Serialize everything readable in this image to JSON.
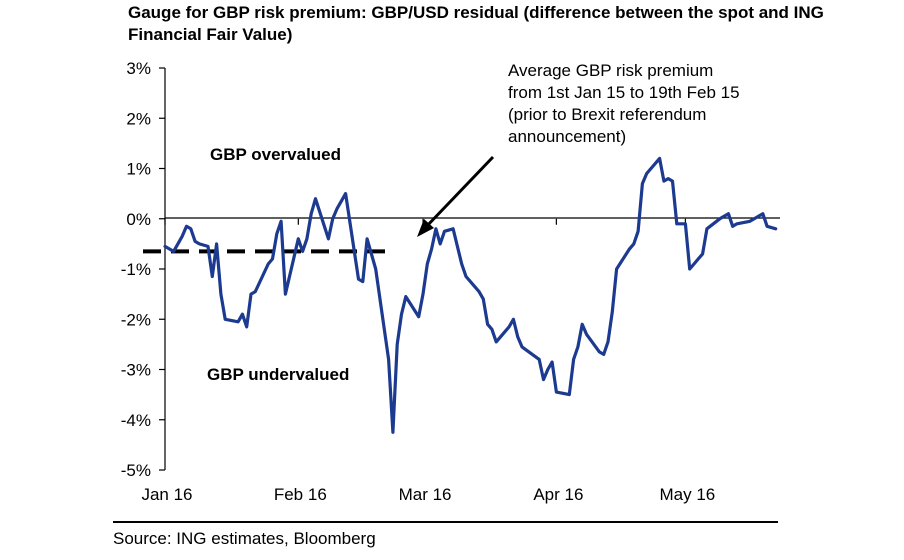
{
  "chart_data": {
    "type": "line",
    "title": "Gauge for GBP risk premium: GBP/USD residual (difference between the spot and ING Financial Fair Value)",
    "xlabel": "",
    "ylabel": "",
    "ylim": [
      -5,
      3
    ],
    "yticks": [
      3,
      2,
      1,
      0,
      -1,
      -2,
      -3,
      -4,
      -5
    ],
    "ytick_labels": [
      "3%",
      "2%",
      "1%",
      "0%",
      "-1%",
      "-2%",
      "-3%",
      "-4%",
      "-5%"
    ],
    "x_range": [
      "2016-01-01",
      "2016-05-23"
    ],
    "xticks": [
      {
        "date": "2016-01-01",
        "label": "Jan 16"
      },
      {
        "date": "2016-02-01",
        "label": "Feb 16"
      },
      {
        "date": "2016-03-01",
        "label": "Mar 16"
      },
      {
        "date": "2016-04-01",
        "label": "Apr 16"
      },
      {
        "date": "2016-05-01",
        "label": "May 16"
      }
    ],
    "grid": false,
    "zero_line": true,
    "line_color": "#1c3a8f",
    "series": [
      {
        "dates": [
          "2016-01-01",
          "2016-01-03",
          "2016-01-05",
          "2016-01-06",
          "2016-01-07",
          "2016-01-08",
          "2016-01-09",
          "2016-01-11",
          "2016-01-12",
          "2016-01-13",
          "2016-01-14",
          "2016-01-15",
          "2016-01-18",
          "2016-01-19",
          "2016-01-20",
          "2016-01-21",
          "2016-01-22",
          "2016-01-25",
          "2016-01-26",
          "2016-01-27",
          "2016-01-28",
          "2016-01-29",
          "2016-02-01",
          "2016-02-02",
          "2016-02-03",
          "2016-02-04",
          "2016-02-05",
          "2016-02-08",
          "2016-02-09",
          "2016-02-10",
          "2016-02-11",
          "2016-02-12",
          "2016-02-15",
          "2016-02-16",
          "2016-02-17",
          "2016-02-18",
          "2016-02-19",
          "2016-02-22",
          "2016-02-23",
          "2016-02-24",
          "2016-02-25",
          "2016-02-26",
          "2016-02-29",
          "2016-03-01",
          "2016-03-02",
          "2016-03-03",
          "2016-03-04",
          "2016-03-05",
          "2016-03-06",
          "2016-03-08",
          "2016-03-09",
          "2016-03-10",
          "2016-03-11",
          "2016-03-14",
          "2016-03-15",
          "2016-03-16",
          "2016-03-17",
          "2016-03-18",
          "2016-03-21",
          "2016-03-22",
          "2016-03-23",
          "2016-03-24",
          "2016-03-28",
          "2016-03-29",
          "2016-03-30",
          "2016-03-31",
          "2016-04-01",
          "2016-04-04",
          "2016-04-05",
          "2016-04-06",
          "2016-04-07",
          "2016-04-08",
          "2016-04-11",
          "2016-04-12",
          "2016-04-13",
          "2016-04-14",
          "2016-04-15",
          "2016-04-18",
          "2016-04-19",
          "2016-04-20",
          "2016-04-21",
          "2016-04-22",
          "2016-04-25",
          "2016-04-26",
          "2016-04-27",
          "2016-04-28",
          "2016-04-29",
          "2016-05-01",
          "2016-05-02",
          "2016-05-03",
          "2016-05-04",
          "2016-05-05",
          "2016-05-06",
          "2016-05-09",
          "2016-05-10",
          "2016-05-11",
          "2016-05-12",
          "2016-05-13",
          "2016-05-16",
          "2016-05-17",
          "2016-05-18",
          "2016-05-19",
          "2016-05-20",
          "2016-05-22"
        ],
        "values": [
          -0.55,
          -0.65,
          -0.35,
          -0.15,
          -0.2,
          -0.45,
          -0.5,
          -0.55,
          -1.15,
          -0.5,
          -1.5,
          -2.0,
          -2.05,
          -1.9,
          -2.15,
          -1.5,
          -1.45,
          -0.9,
          -0.8,
          -0.3,
          -0.05,
          -1.5,
          -0.4,
          -0.65,
          -0.4,
          0.1,
          0.4,
          -0.4,
          0.0,
          0.2,
          0.35,
          0.5,
          -1.2,
          -1.25,
          -0.4,
          -0.7,
          -1.0,
          -2.8,
          -4.25,
          -2.5,
          -1.9,
          -1.55,
          -1.95,
          -1.5,
          -0.9,
          -0.6,
          -0.2,
          -0.5,
          -0.25,
          -0.2,
          -0.55,
          -0.9,
          -1.15,
          -1.45,
          -1.6,
          -2.1,
          -2.2,
          -2.45,
          -2.15,
          -2.0,
          -2.35,
          -2.55,
          -2.8,
          -3.2,
          -3.0,
          -2.85,
          -3.45,
          -3.5,
          -2.8,
          -2.55,
          -2.1,
          -2.3,
          -2.65,
          -2.7,
          -2.45,
          -1.85,
          -1.0,
          -0.6,
          -0.5,
          -0.25,
          0.7,
          0.9,
          1.2,
          0.75,
          0.8,
          0.75,
          -0.1,
          -0.1,
          -1.0,
          -0.9,
          -0.8,
          -0.7,
          -0.2,
          0.0,
          0.05,
          0.1,
          -0.15,
          -0.1,
          -0.05,
          0.0,
          0.05,
          0.1,
          -0.15,
          -0.2
        ],
        "note": ""
      }
    ],
    "reference_line": {
      "value": -0.65,
      "from": "2016-01-01",
      "to": "2016-02-19",
      "style": "dashed"
    },
    "annotations": {
      "average_text_lines": [
        "Average GBP risk premium",
        "from 1st Jan 15 to 19th Feb 15",
        "(prior to Brexit referendum",
        "announcement)"
      ],
      "overvalued": "GBP overvalued",
      "undervalued": "GBP undervalued"
    }
  },
  "source": "Source: ING estimates, Bloomberg"
}
